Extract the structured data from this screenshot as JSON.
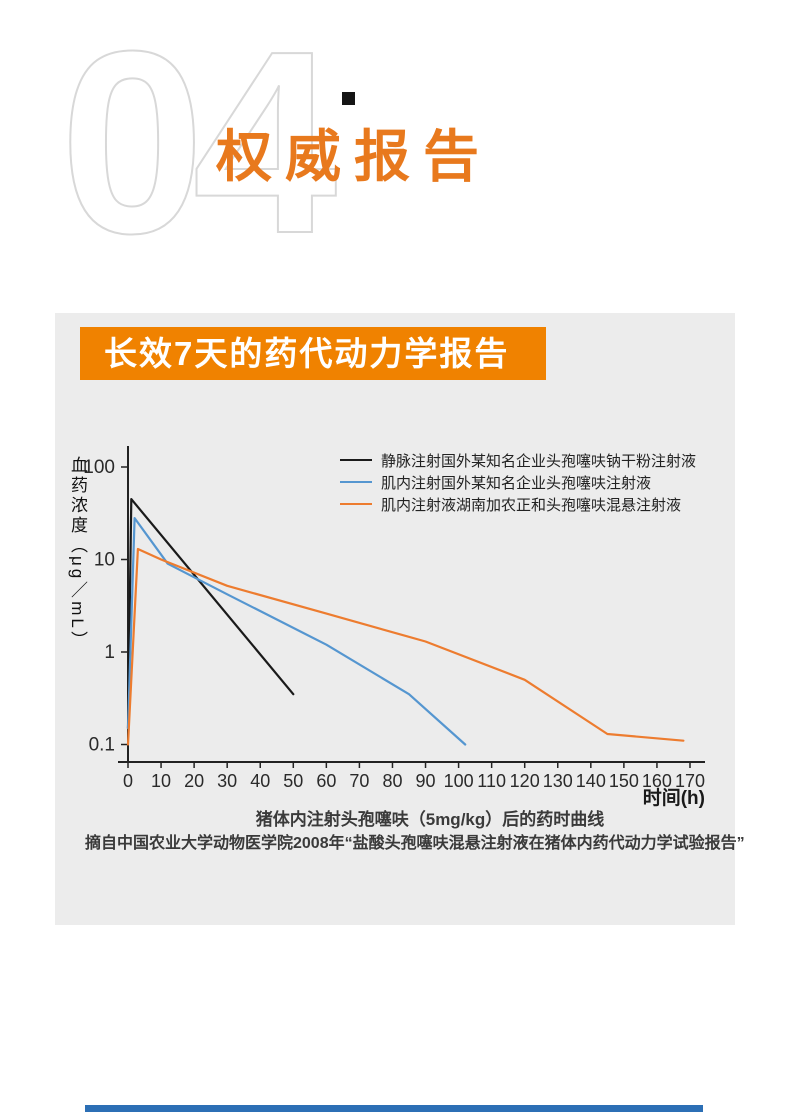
{
  "header": {
    "section_number": "04",
    "title": "权威报告"
  },
  "panel": {
    "banner_title": "长效7天的药代动力学报告",
    "caption": "猪体内注射头孢噻呋（5mg/kg）后的药时曲线",
    "source": "摘自中国农业大学动物医学院2008年“盐酸头孢噻呋混悬注射液在猪体内药代动力学试验报告”"
  },
  "colors": {
    "accent_orange": "#E8791D",
    "banner_orange": "#F08200",
    "panel_gray": "#ECECEC",
    "deco_gray": "#D8D8D8",
    "footer_blue": "#2C6FB5",
    "axis": "#222222"
  },
  "chart_data": {
    "type": "line",
    "title": "",
    "xlabel": "时间(h)",
    "ylabel": "血药浓度（μg／mL）",
    "y_scale": "log",
    "ylim": [
      0.1,
      100
    ],
    "y_ticks": [
      100,
      10,
      1,
      0.1
    ],
    "x_ticks": [
      0,
      10,
      20,
      30,
      40,
      50,
      60,
      70,
      80,
      90,
      100,
      110,
      120,
      130,
      140,
      150,
      160,
      170
    ],
    "grid": false,
    "legend_position": "top-right",
    "series": [
      {
        "name": "静脉注射国外某知名企业头孢噻呋钠干粉注射液",
        "color": "#1A1A1A",
        "points": [
          [
            0,
            0.15
          ],
          [
            1,
            45
          ],
          [
            50,
            0.35
          ]
        ]
      },
      {
        "name": "肌内注射国外某知名企业头孢噻呋注射液",
        "color": "#5596D0",
        "points": [
          [
            0,
            0.15
          ],
          [
            2,
            28
          ],
          [
            12,
            9
          ],
          [
            30,
            4.2
          ],
          [
            60,
            1.2
          ],
          [
            85,
            0.35
          ],
          [
            102,
            0.1
          ]
        ]
      },
      {
        "name": "肌内注射液湖南加农正和头孢噻呋混悬注射液",
        "color": "#ED7C2F",
        "points": [
          [
            0,
            0.1
          ],
          [
            3,
            13
          ],
          [
            10,
            10
          ],
          [
            30,
            5.2
          ],
          [
            60,
            2.6
          ],
          [
            90,
            1.3
          ],
          [
            120,
            0.5
          ],
          [
            145,
            0.13
          ],
          [
            168,
            0.11
          ]
        ]
      }
    ]
  }
}
